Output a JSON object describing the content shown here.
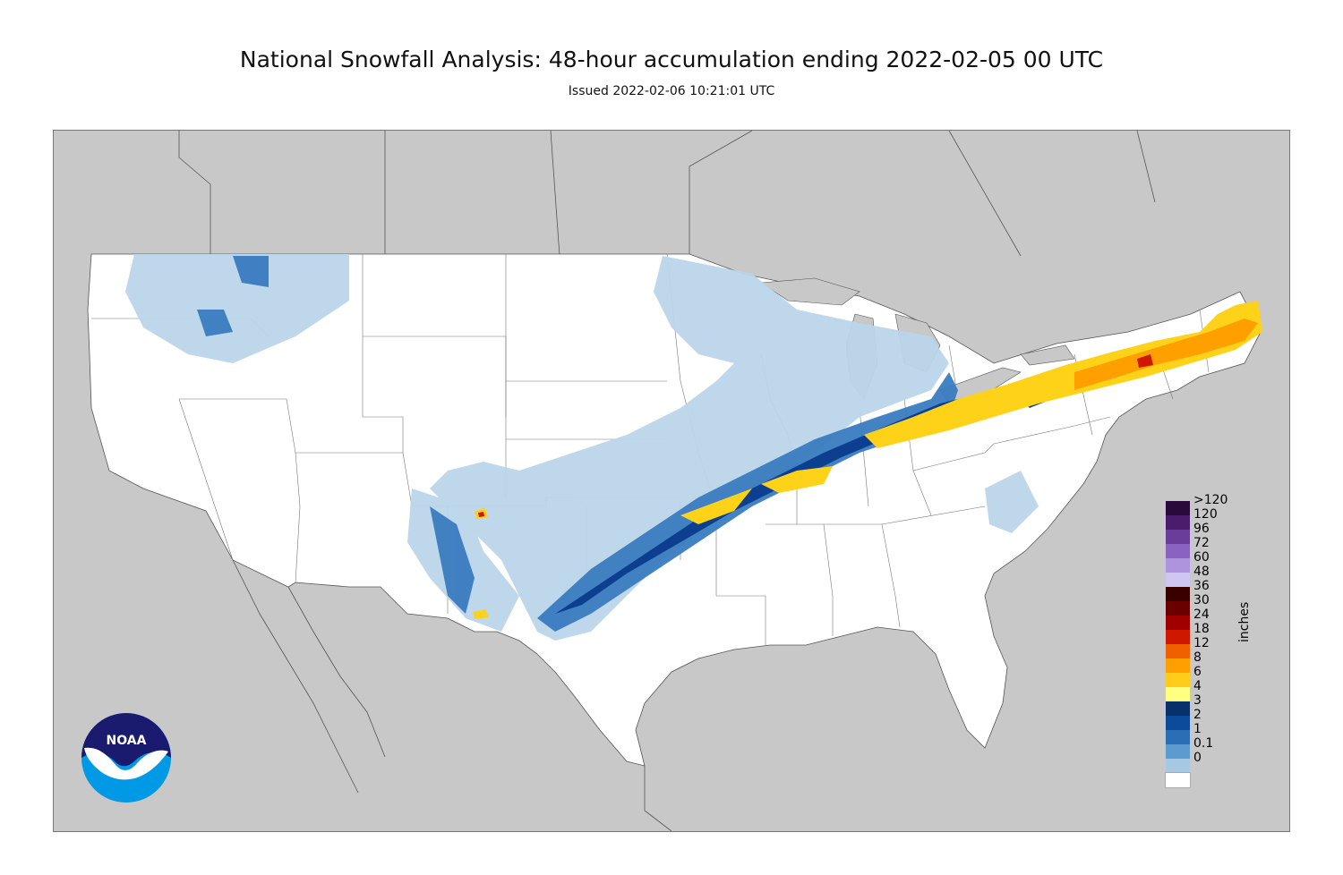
{
  "header": {
    "title": "National Snowfall Analysis: 48-hour accumulation ending 2022-02-05 00 UTC",
    "subtitle": "Issued 2022-02-06 10:21:01 UTC"
  },
  "legend": {
    "unit": "inches",
    "levels": [
      {
        "label": ">120",
        "color": "#2a0a3a"
      },
      {
        "label": "120",
        "color": "#4b1c6b"
      },
      {
        "label": "96",
        "color": "#6a3d9a"
      },
      {
        "label": "72",
        "color": "#8a62c2"
      },
      {
        "label": "60",
        "color": "#ad94dc"
      },
      {
        "label": "48",
        "color": "#d0c6f2"
      },
      {
        "label": "36",
        "color": "#3a0000"
      },
      {
        "label": "30",
        "color": "#6a0000"
      },
      {
        "label": "24",
        "color": "#a10000"
      },
      {
        "label": "18",
        "color": "#d01800"
      },
      {
        "label": "12",
        "color": "#f06000"
      },
      {
        "label": "8",
        "color": "#ff9f00"
      },
      {
        "label": "6",
        "color": "#ffcc1a"
      },
      {
        "label": "4",
        "color": "#ffff80"
      },
      {
        "label": "3",
        "color": "#08306b"
      },
      {
        "label": "2",
        "color": "#0c4b9c"
      },
      {
        "label": "1",
        "color": "#2a6fb5"
      },
      {
        "label": "0.1",
        "color": "#5c9ad0"
      },
      {
        "label": "0",
        "color": "#a7c8e2"
      }
    ],
    "extra_swatches": [
      "#dde9f3",
      "#ffffff"
    ]
  },
  "logo": {
    "text": "NOAA"
  },
  "colors": {
    "background_land_outside": "#c8c8c8",
    "conus_fill": "#ffffff",
    "light_snow": "#bcd5ea",
    "moderate_snow": "#3a7cc0",
    "heavy_snow": "#0a3b8c",
    "yellow_band": "#ffd21a",
    "orange_band": "#ff9f00"
  }
}
